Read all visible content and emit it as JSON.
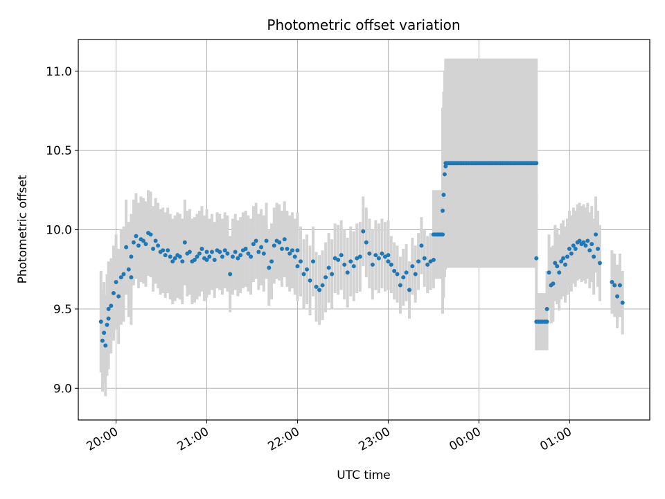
{
  "chart_data": {
    "type": "scatter",
    "title": "Photometric offset variation",
    "xlabel": "UTC time",
    "ylabel": "Photometric offset",
    "x_unit": "UTC time",
    "xlim": [
      "19:35",
      "25:53"
    ],
    "ylim": [
      8.8,
      11.2
    ],
    "grid": true,
    "legend": "none",
    "colors": {
      "points": "#1f77b4",
      "errorbars": "#d3d3d3",
      "grid": "#b0b0b0"
    },
    "xticks": [
      {
        "value": "20:00",
        "label": "20:00"
      },
      {
        "value": "21:00",
        "label": "21:00"
      },
      {
        "value": "22:00",
        "label": "22:00"
      },
      {
        "value": "23:00",
        "label": "23:00"
      },
      {
        "value": "24:00",
        "label": "00:00"
      },
      {
        "value": "25:00",
        "label": "01:00"
      }
    ],
    "yticks": [
      {
        "value": 9.0,
        "label": "9.0"
      },
      {
        "value": 9.5,
        "label": "9.5"
      },
      {
        "value": 10.0,
        "label": "10.0"
      },
      {
        "value": 10.5,
        "label": "10.5"
      },
      {
        "value": 11.0,
        "label": "11.0"
      }
    ],
    "segments": [
      {
        "start": "19:50",
        "end": "19:55",
        "values": [
          9.42,
          9.3,
          9.35,
          9.27,
          9.4,
          9.44
        ],
        "error": 0.32
      },
      {
        "start": "19:55",
        "end": "20:10",
        "values": [
          9.5,
          9.52,
          9.6,
          9.67,
          9.58,
          9.7,
          9.72,
          9.89,
          9.75,
          9.7
        ],
        "error": 0.3
      },
      {
        "start": "20:10",
        "end": "21:00",
        "values": [
          9.83,
          9.92,
          9.96,
          9.9,
          9.94,
          9.93,
          9.91,
          9.98,
          9.97,
          9.88,
          9.93,
          9.9,
          9.86,
          9.87,
          9.84,
          9.87,
          9.83,
          9.8,
          9.82,
          9.84,
          9.83,
          9.8,
          9.92,
          9.85,
          9.86,
          9.8,
          9.81,
          9.83,
          9.85,
          9.88,
          9.82,
          9.86
        ],
        "error": 0.27
      },
      {
        "start": "21:00",
        "end": "22:00",
        "values": [
          9.81,
          9.83,
          9.86,
          9.81,
          9.87,
          9.86,
          9.83,
          9.87,
          9.85,
          9.72,
          9.83,
          9.86,
          9.82,
          9.84,
          9.87,
          9.88,
          9.85,
          9.83,
          9.91,
          9.93,
          9.86,
          9.89,
          9.85,
          9.93,
          9.76,
          9.8,
          9.9,
          9.93,
          9.92,
          9.88,
          9.94,
          9.88,
          9.85,
          9.87,
          9.83,
          9.87
        ],
        "error": 0.24
      },
      {
        "start": "22:00",
        "end": "23:00",
        "values": [
          9.77,
          9.8,
          9.72,
          9.75,
          9.68,
          9.8,
          9.64,
          9.62,
          9.65,
          9.7,
          9.76,
          9.72,
          9.82,
          9.81,
          9.84,
          9.78,
          9.73,
          9.8,
          9.77,
          9.82,
          9.83,
          9.99,
          9.92,
          9.85,
          9.78,
          9.84,
          9.82,
          9.85,
          9.83,
          9.84
        ],
        "error": 0.22
      },
      {
        "start": "23:00",
        "end": "23:30",
        "values": [
          9.8,
          9.78,
          9.74,
          9.72,
          9.65,
          9.7,
          9.73,
          9.62,
          9.77,
          9.72,
          9.8,
          9.9,
          9.82,
          9.78,
          9.8,
          9.81
        ],
        "error": 0.18
      },
      {
        "start": "23:30",
        "end": "23:36",
        "values": [
          9.97,
          9.97,
          9.97,
          9.97,
          9.97,
          9.97
        ],
        "error": 0.28
      },
      {
        "start": "23:36",
        "end": "23:38",
        "values": [
          10.12,
          10.22,
          10.35,
          10.4
        ],
        "error": 0.65
      },
      {
        "start": "23:38",
        "end": "24:38",
        "values": [
          10.42,
          10.42,
          10.42,
          10.42,
          10.42,
          10.42,
          10.42,
          10.42,
          10.42,
          10.42,
          10.42,
          10.42,
          10.42,
          10.42,
          10.42,
          10.42,
          10.42,
          10.42,
          10.42,
          10.42,
          10.42,
          10.42,
          10.42,
          10.42,
          10.42,
          10.42,
          10.42,
          10.42,
          10.42,
          10.42,
          10.42,
          10.42,
          10.42,
          10.42,
          10.42,
          10.42,
          10.42,
          10.42,
          10.42,
          10.42,
          10.42,
          10.42,
          10.42,
          10.42,
          10.42,
          10.42,
          10.42,
          10.42,
          10.42,
          10.42,
          10.42,
          10.42,
          10.42,
          10.42,
          10.42,
          10.42,
          10.42
        ],
        "error": 0.66
      },
      {
        "start": "24:38",
        "end": "24:38",
        "values": [
          9.82
        ],
        "error": 0.4
      },
      {
        "start": "24:38",
        "end": "24:45",
        "values": [
          9.42,
          9.42,
          9.42,
          9.42,
          9.42,
          9.42
        ],
        "error": 0.18
      },
      {
        "start": "24:45",
        "end": "25:20",
        "values": [
          9.5,
          9.73,
          9.65,
          9.66,
          9.79,
          9.77,
          9.73,
          9.8,
          9.82,
          9.78,
          9.83,
          9.88,
          9.85,
          9.9,
          9.88,
          9.92,
          9.93,
          9.91,
          9.92,
          9.9,
          9.93,
          9.87,
          9.91,
          9.83,
          9.97,
          9.88,
          9.79
        ],
        "error": 0.24
      },
      {
        "start": "25:28",
        "end": "25:35",
        "values": [
          9.67,
          9.65,
          9.58,
          9.65,
          9.54
        ],
        "error": 0.2
      }
    ]
  }
}
